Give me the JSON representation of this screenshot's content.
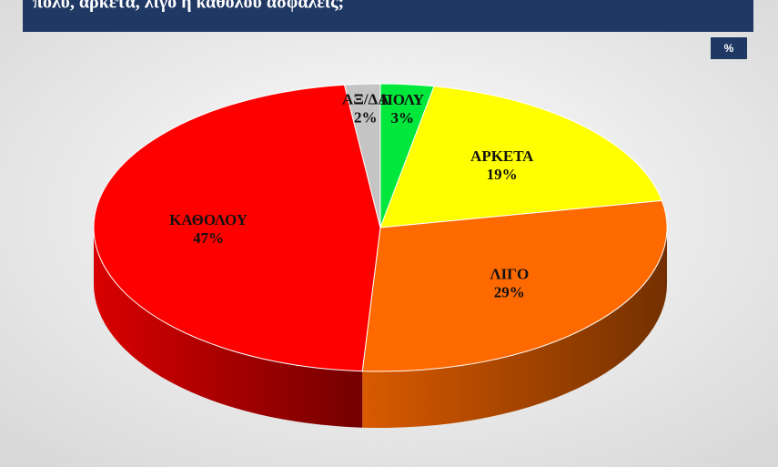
{
  "chart_data": {
    "type": "pie3d",
    "title": "πολύ, αρκετά, λίγο ή καθόλου ασφαλείς;",
    "unit_badge": "%",
    "categories": [
      "ΠΟΛΥ",
      "ΑΡΚΕΤΑ",
      "ΛΙΓΟ",
      "ΚΑΘΟΛΟΥ",
      "ΑΞ/ΔΑ"
    ],
    "values": [
      3,
      19,
      29,
      47,
      2
    ],
    "value_labels": [
      "3%",
      "19%",
      "29%",
      "47%",
      "2%"
    ],
    "colors": [
      "#00e83c",
      "#ffff00",
      "#ff6a00",
      "#ff0000",
      "#c4c4c4"
    ]
  }
}
